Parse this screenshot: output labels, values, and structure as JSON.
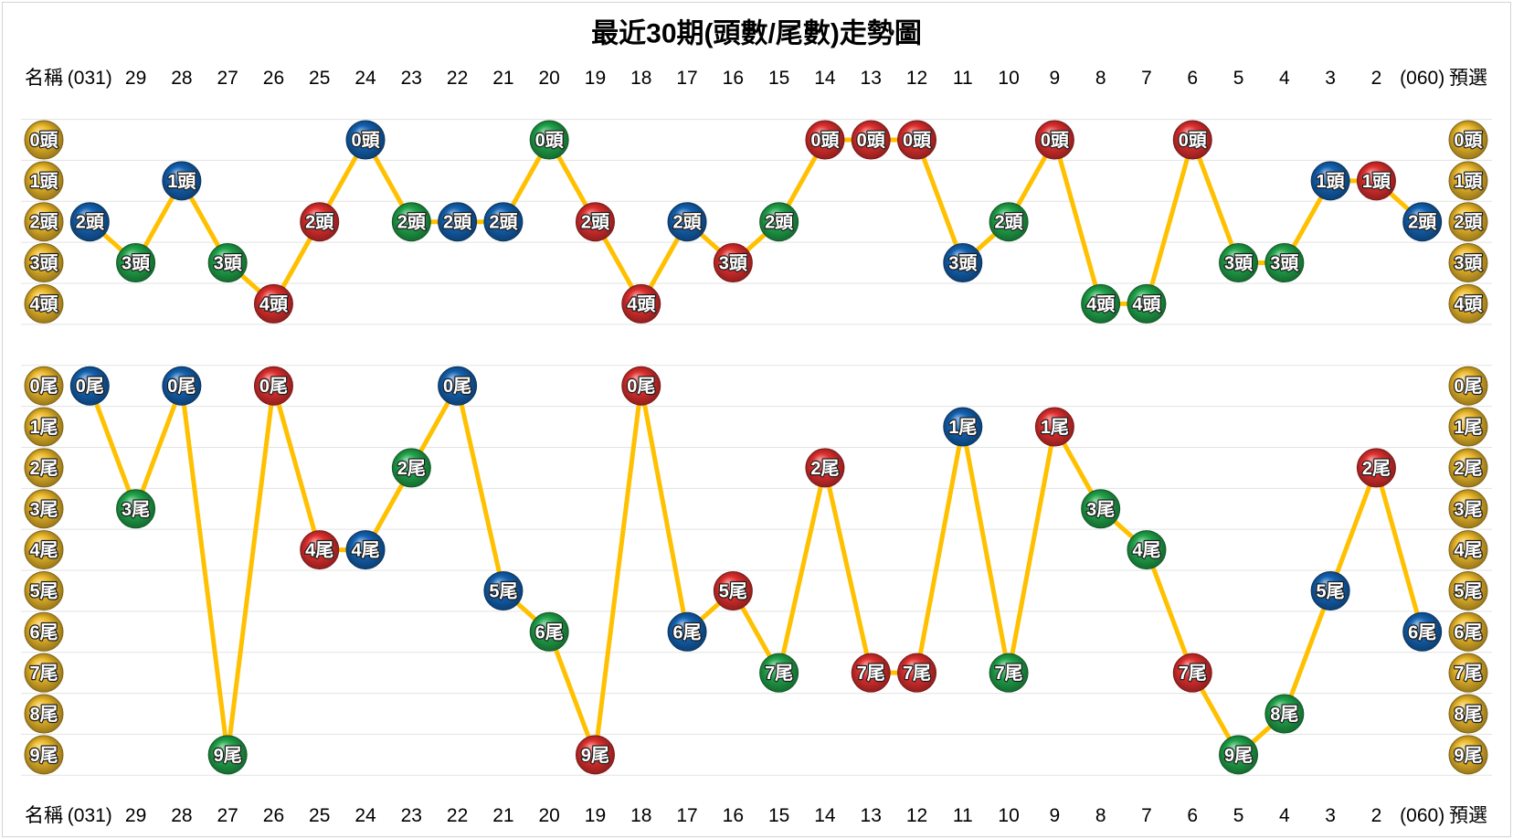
{
  "colors": {
    "red": "#e0302f",
    "blue": "#1463b3",
    "green": "#21a54b",
    "gold": "#ecb92a",
    "trend_line": "#ffc000",
    "grid": "#e3e3e3",
    "border": "#d4d4d4"
  },
  "chart_data": {
    "type": "line",
    "title": "最近30期(頭數/尾數)走勢圖",
    "row_label": "名稱",
    "preselect_label": "預選",
    "categories": [
      "(031)",
      "29",
      "28",
      "27",
      "26",
      "25",
      "24",
      "23",
      "22",
      "21",
      "20",
      "19",
      "18",
      "17",
      "16",
      "15",
      "14",
      "13",
      "12",
      "11",
      "10",
      "9",
      "8",
      "7",
      "6",
      "5",
      "4",
      "3",
      "2",
      "(060)"
    ],
    "ball_colors": [
      "blue",
      "green",
      "blue",
      "green",
      "red",
      "red",
      "blue",
      "green",
      "blue",
      "blue",
      "green",
      "red",
      "red",
      "blue",
      "red",
      "green",
      "red",
      "red",
      "red",
      "blue",
      "green",
      "red",
      "green",
      "green",
      "red",
      "green",
      "green",
      "blue",
      "red",
      "blue"
    ],
    "series": [
      {
        "unit": "頭",
        "levels": [
          0,
          1,
          2,
          3,
          4
        ],
        "values": [
          2,
          3,
          1,
          3,
          4,
          2,
          0,
          2,
          2,
          2,
          0,
          2,
          4,
          2,
          3,
          2,
          0,
          0,
          0,
          3,
          2,
          0,
          4,
          4,
          0,
          3,
          3,
          1,
          1,
          2
        ]
      },
      {
        "unit": "尾",
        "levels": [
          0,
          1,
          2,
          3,
          4,
          5,
          6,
          7,
          8,
          9
        ],
        "values": [
          0,
          3,
          0,
          9,
          0,
          4,
          4,
          2,
          0,
          5,
          6,
          9,
          0,
          6,
          5,
          7,
          2,
          7,
          7,
          1,
          7,
          1,
          3,
          4,
          7,
          9,
          8,
          5,
          2,
          6
        ]
      }
    ],
    "grid": true
  }
}
